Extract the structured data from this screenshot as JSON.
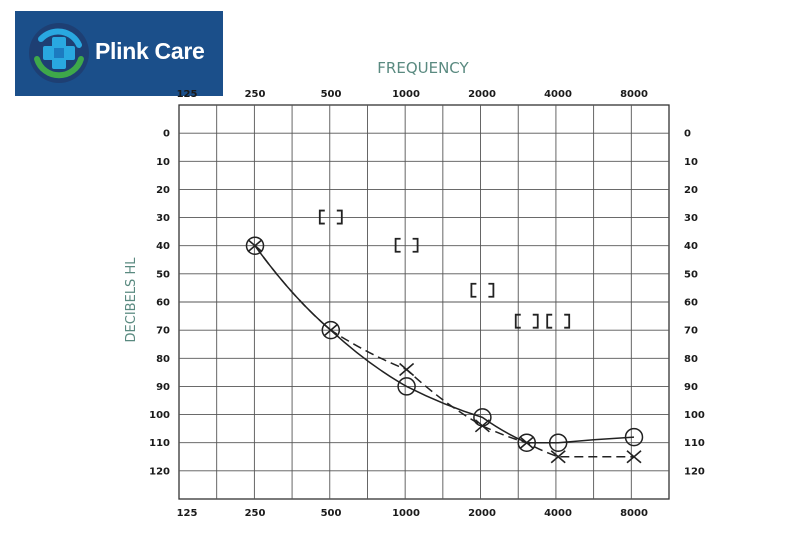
{
  "brand": {
    "name": "Plink Care",
    "colors": {
      "background": "#1b4f8a",
      "ring_green": "#3ea84a",
      "ring_blue": "#29a8e0",
      "text": "#ffffff"
    },
    "icon": "medical-cross-icon"
  },
  "chart_data": {
    "type": "line",
    "title": "FREQUENCY",
    "xlabel": "FREQUENCY",
    "ylabel": "DECIBELS HL",
    "x_scale": "log2",
    "x_ticks": [
      "125",
      "250",
      "500",
      "1000",
      "2000",
      "4000",
      "8000"
    ],
    "y_ticks_left": [
      "0",
      "10",
      "20",
      "30",
      "40",
      "50",
      "60",
      "70",
      "80",
      "90",
      "100",
      "110",
      "120"
    ],
    "y_ticks_right": [
      "0",
      "10",
      "20",
      "30",
      "40",
      "50",
      "60",
      "70",
      "80",
      "90",
      "100",
      "110",
      "120"
    ],
    "ylim": [
      -10,
      130
    ],
    "y_inverted": true,
    "grid": true,
    "series": [
      {
        "marker": "circle",
        "line": "solid",
        "x": [
          250,
          500,
          1000,
          2000,
          3000,
          4000,
          8000
        ],
        "y": [
          40,
          70,
          90,
          101,
          110,
          110,
          108
        ]
      },
      {
        "marker": "x",
        "line": "dashed",
        "x": [
          250,
          500,
          1000,
          2000,
          3000,
          4000,
          8000
        ],
        "y": [
          40,
          70,
          84,
          104,
          110,
          115,
          115
        ]
      },
      {
        "marker": "bracket",
        "line": "none",
        "x": [
          500,
          1000,
          2000,
          3000,
          4000
        ],
        "y": [
          30,
          40,
          56,
          67,
          67
        ]
      }
    ]
  }
}
